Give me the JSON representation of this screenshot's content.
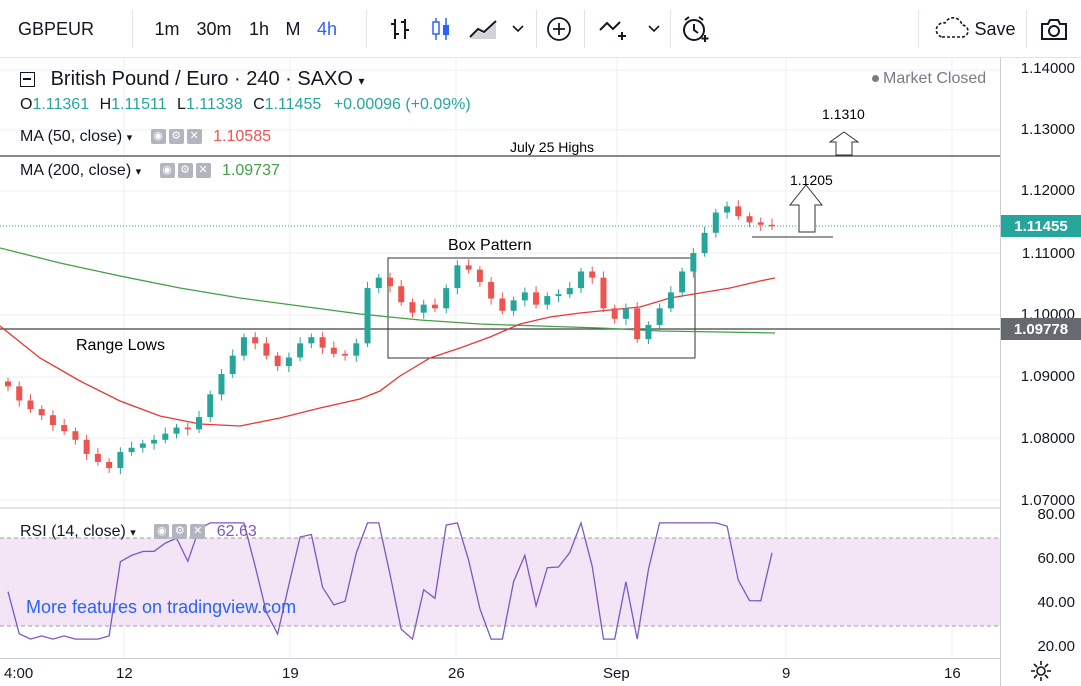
{
  "toolbar": {
    "symbol": "GBPEUR",
    "timeframes": [
      "1m",
      "30m",
      "1h",
      "M",
      "4h"
    ],
    "active_timeframe": "4h",
    "save_label": "Save"
  },
  "legend": {
    "title": "British Pound / Euro · 240 · SAXO",
    "ohlc": {
      "o_label": "O",
      "o": "1.11361",
      "h_label": "H",
      "h": "1.11511",
      "l_label": "L",
      "l": "1.11338",
      "c_label": "C",
      "c": "1.11455",
      "change": "+0.00096 (+0.09%)"
    },
    "ma50": {
      "label": "MA (50, close)",
      "value": "1.10585"
    },
    "ma200": {
      "label": "MA (200, close)",
      "value": "1.09737"
    },
    "rsi": {
      "label": "RSI (14, close)",
      "value": "62.63"
    }
  },
  "status": {
    "market_closed": "Market Closed"
  },
  "annotations": {
    "july25": "July 25 Highs",
    "box": "Box Pattern",
    "range_lows": "Range Lows",
    "target1": "1.1205",
    "target2": "1.1310"
  },
  "watermark": "More features on tradingview.com",
  "price_axis": {
    "ticks": [
      "1.14000",
      "1.13000",
      "1.12000",
      "1.11000",
      "1.10000",
      "1.09000",
      "1.08000",
      "1.07000"
    ],
    "current_price": "1.11455",
    "range_lows_price": "1.09778"
  },
  "rsi_axis": {
    "ticks": [
      "80.00",
      "60.00",
      "40.00",
      "20.00"
    ]
  },
  "time_axis": {
    "labels": [
      "4:00",
      "12",
      "19",
      "26",
      "Sep",
      "9",
      "16"
    ]
  },
  "colors": {
    "up": "#26a69a",
    "down": "#ef5350",
    "ma50": "#e53935",
    "ma200": "#43a047",
    "rsi_line": "#7e57c2",
    "rsi_band": "#f3e5f5",
    "accent": "#2962ff",
    "price_tag": "#26a69a",
    "range_tag": "#787b86"
  },
  "chart_data": {
    "type": "candlestick",
    "symbol": "GBPEUR",
    "interval": "240",
    "ylim": [
      1.07,
      1.14
    ],
    "close_series": [
      1.0885,
      1.0862,
      1.0848,
      1.0838,
      1.0822,
      1.0812,
      1.0798,
      1.0775,
      1.0762,
      1.0752,
      1.0778,
      1.0785,
      1.0792,
      1.0798,
      1.0808,
      1.0818,
      1.0815,
      1.0835,
      1.0872,
      1.0905,
      1.0935,
      1.0965,
      1.0955,
      1.0935,
      1.0918,
      1.0932,
      1.0955,
      1.0965,
      1.0948,
      1.0938,
      1.0935,
      1.0955,
      1.1045,
      1.1062,
      1.1048,
      1.1022,
      1.1005,
      1.1018,
      1.1012,
      1.1045,
      1.1082,
      1.1075,
      1.1055,
      1.1028,
      1.1008,
      1.1025,
      1.1038,
      1.1018,
      1.1032,
      1.1035,
      1.1045,
      1.1072,
      1.1062,
      1.1012,
      1.0995,
      1.1012,
      1.0962,
      1.0985,
      1.1012,
      1.1038,
      1.1072,
      1.1102,
      1.1135,
      1.1168,
      1.1178,
      1.1162,
      1.1152,
      1.1148,
      1.11455
    ],
    "ma50_value": 1.10585,
    "ma200_value": 1.09737,
    "current_price": 1.11455,
    "range_lows_level": 1.09778,
    "july25_highs_level": 1.1255,
    "box_pattern": {
      "low": 1.0935,
      "high": 1.1088
    },
    "targets": [
      1.1205,
      1.131
    ],
    "rsi": {
      "period": 14,
      "current": 62.63,
      "upper_band": 70,
      "lower_band": 30,
      "ylim": [
        20,
        80
      ]
    }
  }
}
